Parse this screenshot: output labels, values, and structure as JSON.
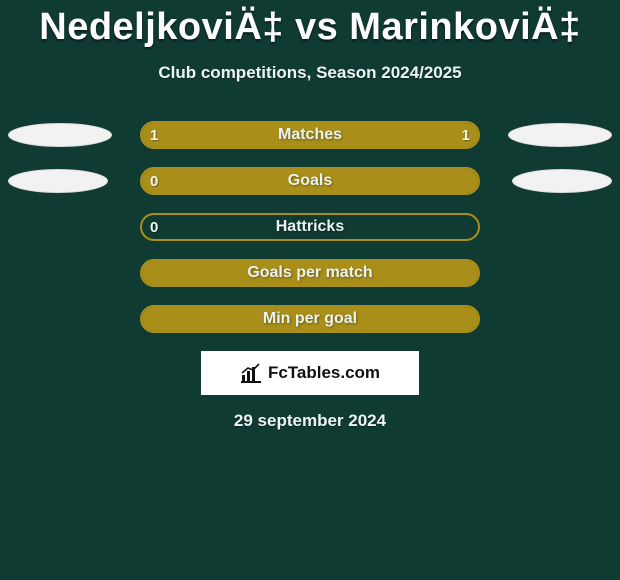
{
  "background_color": "#103b33",
  "accent_color": "#a98f19",
  "text_color": "#eef6f4",
  "title": "NedeljkoviÄ‡ vs MarinkoviÄ‡",
  "title_fontsize": 38,
  "subtitle": "Club competitions, Season 2024/2025",
  "subtitle_fontsize": 17,
  "footer_brand": "FcTables.com",
  "date": "29 september 2024",
  "ellipse_color": "#f2f2f2",
  "rows": [
    {
      "label": "Matches",
      "left_value": "1",
      "right_value": "1",
      "left_fill_pct": 50,
      "right_fill_pct": 50,
      "show_left_value": true,
      "show_right_value": true,
      "left_ellipse_width": 104,
      "right_ellipse_width": 104
    },
    {
      "label": "Goals",
      "left_value": "0",
      "right_value": "",
      "left_fill_pct": 100,
      "right_fill_pct": 0,
      "show_left_value": true,
      "show_right_value": false,
      "left_ellipse_width": 100,
      "right_ellipse_width": 100
    },
    {
      "label": "Hattricks",
      "left_value": "0",
      "right_value": "",
      "left_fill_pct": 0,
      "right_fill_pct": 0,
      "show_left_value": true,
      "show_right_value": false,
      "left_ellipse_width": 0,
      "right_ellipse_width": 0
    },
    {
      "label": "Goals per match",
      "left_value": "",
      "right_value": "",
      "left_fill_pct": 100,
      "right_fill_pct": 0,
      "show_left_value": false,
      "show_right_value": false,
      "left_ellipse_width": 0,
      "right_ellipse_width": 0
    },
    {
      "label": "Min per goal",
      "left_value": "",
      "right_value": "",
      "left_fill_pct": 100,
      "right_fill_pct": 0,
      "show_left_value": false,
      "show_right_value": false,
      "left_ellipse_width": 0,
      "right_ellipse_width": 0
    }
  ]
}
